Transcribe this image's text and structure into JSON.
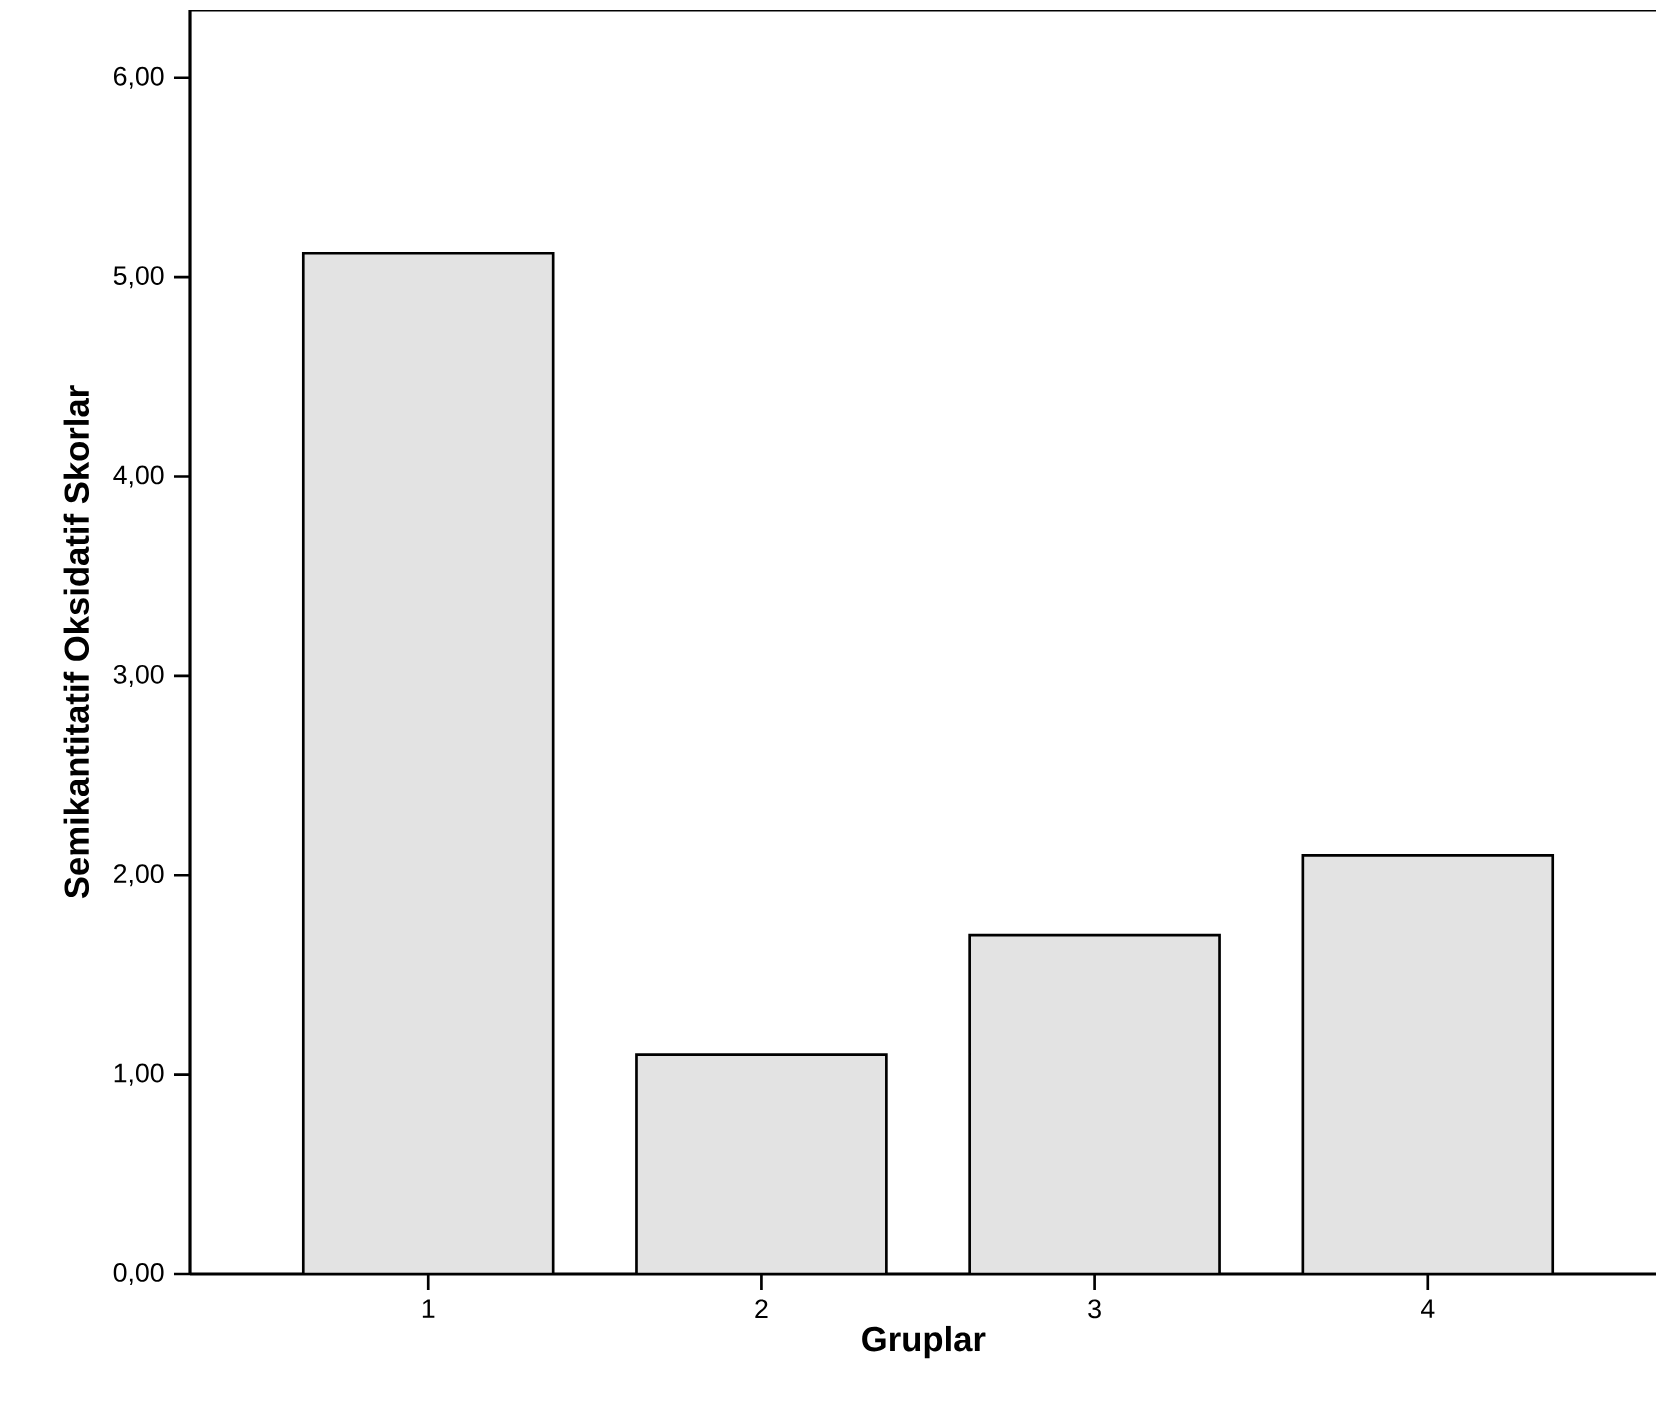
{
  "chart_data": {
    "type": "bar",
    "xlabel": "Gruplar",
    "ylabel": "Semikantitatif Oksidatif Skorlar",
    "categories": [
      "1",
      "2",
      "3",
      "4"
    ],
    "values": [
      5.12,
      1.1,
      1.7,
      2.1
    ],
    "color": "#e3e3e3",
    "ylim": [
      0,
      6.34
    ],
    "yticks": [
      {
        "value": 0,
        "label": "0,00"
      },
      {
        "value": 1,
        "label": "1,00"
      },
      {
        "value": 2,
        "label": "2,00"
      },
      {
        "value": 3,
        "label": "3,00"
      },
      {
        "value": 4,
        "label": "4,00"
      },
      {
        "value": 5,
        "label": "5,00"
      },
      {
        "value": 6,
        "label": "6,00"
      }
    ],
    "grid": false
  }
}
